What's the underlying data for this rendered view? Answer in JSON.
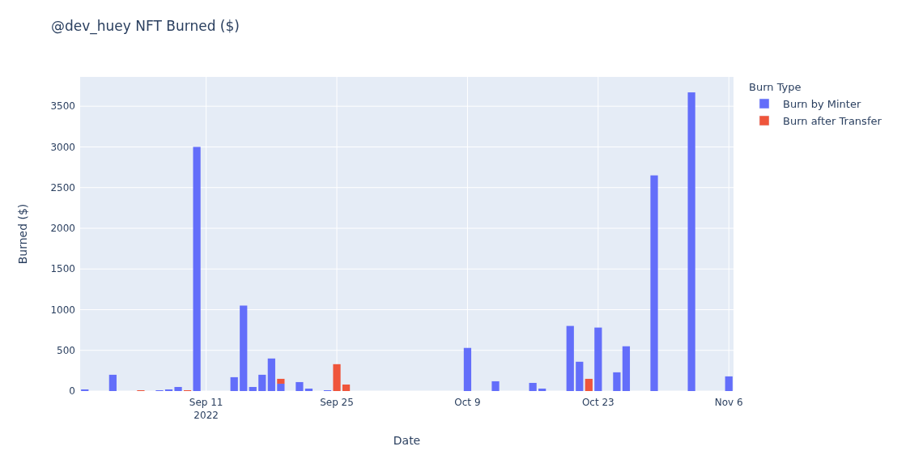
{
  "chart_data": {
    "type": "bar",
    "title": "@dev_huey NFT Burned ($)",
    "xlabel": "Date",
    "ylabel": "Burned ($)",
    "legend_title": "Burn Type",
    "stacked": true,
    "grid": true,
    "legend": "top right",
    "x": [
      "2022-08-29",
      "2022-09-01",
      "2022-09-04",
      "2022-09-06",
      "2022-09-07",
      "2022-09-08",
      "2022-09-09",
      "2022-09-10",
      "2022-09-14",
      "2022-09-15",
      "2022-09-16",
      "2022-09-17",
      "2022-09-18",
      "2022-09-19",
      "2022-09-21",
      "2022-09-22",
      "2022-09-24",
      "2022-09-25",
      "2022-09-26",
      "2022-10-09",
      "2022-10-12",
      "2022-10-16",
      "2022-10-17",
      "2022-10-20",
      "2022-10-21",
      "2022-10-22",
      "2022-10-23",
      "2022-10-25",
      "2022-10-26",
      "2022-10-29",
      "2022-11-02",
      "2022-11-06"
    ],
    "series": [
      {
        "name": "Burn by Minter",
        "color": "#636efa",
        "values": [
          20,
          200,
          null,
          10,
          20,
          50,
          null,
          3000,
          170,
          1050,
          50,
          200,
          400,
          90,
          110,
          30,
          10,
          null,
          null,
          530,
          120,
          100,
          30,
          800,
          360,
          null,
          780,
          230,
          550,
          2650,
          3670,
          180
        ]
      },
      {
        "name": "Burn after Transfer",
        "color": "#ef553b",
        "values": [
          null,
          null,
          10,
          null,
          null,
          null,
          10,
          null,
          null,
          null,
          null,
          null,
          null,
          60,
          null,
          null,
          null,
          330,
          80,
          null,
          null,
          null,
          null,
          null,
          null,
          150,
          null,
          null,
          null,
          null,
          null,
          null
        ]
      }
    ],
    "xlim": [
      "2022-08-28T12:00",
      "2022-11-06T12:00"
    ],
    "xticks": [
      {
        "value": "2022-09-11",
        "label": "Sep 11\n2022"
      },
      {
        "value": "2022-09-25",
        "label": "Sep 25"
      },
      {
        "value": "2022-10-09",
        "label": "Oct 9"
      },
      {
        "value": "2022-10-23",
        "label": "Oct 23"
      },
      {
        "value": "2022-11-06",
        "label": "Nov 6"
      }
    ],
    "ylim": [
      0,
      3860
    ],
    "yticks": [
      0,
      500,
      1000,
      1500,
      2000,
      2500,
      3000,
      3500
    ]
  }
}
